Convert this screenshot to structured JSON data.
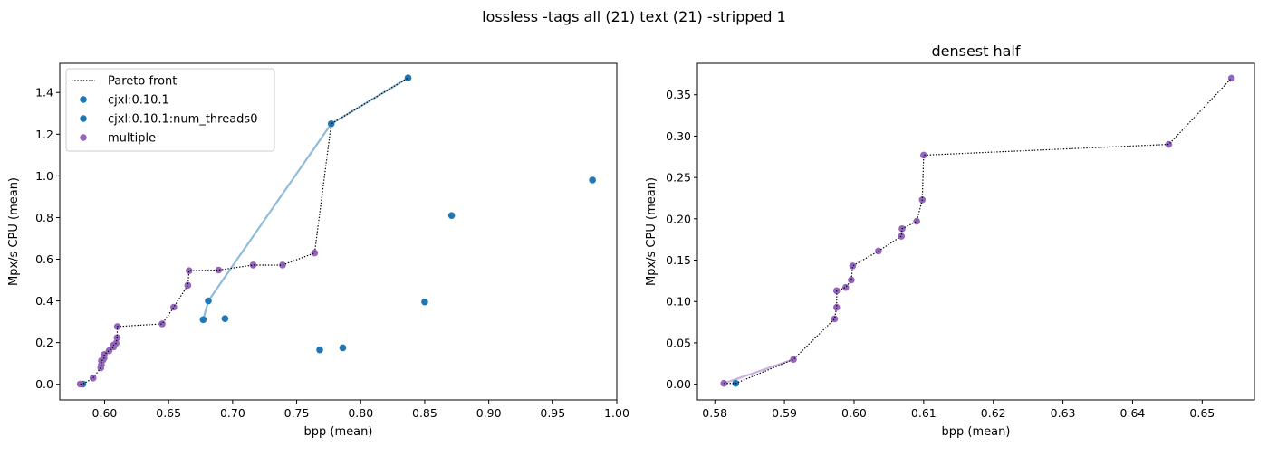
{
  "figure": {
    "suptitle": "lossless -tags all (21) text (21) -stripped 1"
  },
  "colors": {
    "blue": "#1f77b4",
    "light_blue": "#8fbcdb",
    "purple": "#9467bd",
    "light_purple": "#c9b2de",
    "pareto": "#000000"
  },
  "legend": {
    "placement": "top-left",
    "entries": [
      {
        "label": "Pareto front",
        "marker": "dotted-line",
        "color": "#000000"
      },
      {
        "label": "cjxl:0.10.1",
        "marker": "dot",
        "color": "#1f77b4"
      },
      {
        "label": "cjxl:0.10.1:num_threads0",
        "marker": "dot",
        "color": "#1f77b4"
      },
      {
        "label": "multiple",
        "marker": "dot",
        "color": "#9467bd"
      }
    ]
  },
  "chart_data": [
    {
      "type": "scatter",
      "title": "",
      "xlabel": "bpp (mean)",
      "ylabel": "Mpx/s CPU (mean)",
      "xlim": [
        0.565,
        1.0
      ],
      "ylim": [
        -0.075,
        1.54
      ],
      "xticks": [
        0.6,
        0.65,
        0.7,
        0.75,
        0.8,
        0.85,
        0.9,
        0.95,
        1.0
      ],
      "xtick_labels": [
        "0.60",
        "0.65",
        "0.70",
        "0.75",
        "0.80",
        "0.85",
        "0.90",
        "0.95",
        "1.00"
      ],
      "yticks": [
        0.0,
        0.2,
        0.4,
        0.6,
        0.8,
        1.0,
        1.2,
        1.4
      ],
      "ytick_labels": [
        "0.0",
        "0.2",
        "0.4",
        "0.6",
        "0.8",
        "1.0",
        "1.2",
        "1.4"
      ],
      "grid": false,
      "legend": true,
      "series": [
        {
          "name": "cjxl:0.10.1",
          "color": "#1f77b4",
          "points": [
            [
              0.583,
              0.001
            ],
            [
              0.677,
              0.31
            ],
            [
              0.681,
              0.4
            ],
            [
              0.694,
              0.315
            ],
            [
              0.768,
              0.165
            ],
            [
              0.786,
              0.175
            ],
            [
              0.85,
              0.395
            ],
            [
              0.871,
              0.81
            ],
            [
              0.981,
              0.98
            ],
            [
              0.777,
              1.25
            ],
            [
              0.837,
              1.47
            ]
          ]
        },
        {
          "name": "cjxl:0.10.1:num_threads0",
          "color": "#1f77b4",
          "points": []
        },
        {
          "name": "multiple",
          "color": "#9467bd",
          "points": [
            [
              0.581,
              0.001
            ],
            [
              0.591,
              0.03
            ],
            [
              0.597,
              0.079
            ],
            [
              0.5975,
              0.093
            ],
            [
              0.5975,
              0.113
            ],
            [
              0.5988,
              0.117
            ],
            [
              0.5996,
              0.126
            ],
            [
              0.5998,
              0.143
            ],
            [
              0.6035,
              0.161
            ],
            [
              0.607,
              0.179
            ],
            [
              0.607,
              0.188
            ],
            [
              0.609,
              0.197
            ],
            [
              0.6098,
              0.223
            ],
            [
              0.61,
              0.277
            ],
            [
              0.645,
              0.29
            ],
            [
              0.654,
              0.37
            ],
            [
              0.665,
              0.475
            ],
            [
              0.666,
              0.545
            ],
            [
              0.689,
              0.548
            ],
            [
              0.716,
              0.572
            ],
            [
              0.739,
              0.572
            ],
            [
              0.764,
              0.63
            ]
          ]
        }
      ],
      "lines": [
        {
          "name": "cjxl:0.10.1 connecting line",
          "color": "#8fbcdb",
          "points": [
            [
              0.677,
              0.31
            ],
            [
              0.681,
              0.4
            ],
            [
              0.777,
              1.25
            ],
            [
              0.837,
              1.47
            ]
          ]
        },
        {
          "name": "Pareto front",
          "style": "dotted",
          "color": "#000000",
          "points": [
            [
              0.581,
              0.001
            ],
            [
              0.583,
              0.001
            ],
            [
              0.591,
              0.03
            ],
            [
              0.597,
              0.079
            ],
            [
              0.5975,
              0.093
            ],
            [
              0.5975,
              0.113
            ],
            [
              0.5988,
              0.117
            ],
            [
              0.5996,
              0.126
            ],
            [
              0.5998,
              0.143
            ],
            [
              0.6035,
              0.161
            ],
            [
              0.607,
              0.179
            ],
            [
              0.607,
              0.188
            ],
            [
              0.609,
              0.197
            ],
            [
              0.6098,
              0.223
            ],
            [
              0.61,
              0.277
            ],
            [
              0.645,
              0.29
            ],
            [
              0.654,
              0.37
            ],
            [
              0.665,
              0.475
            ],
            [
              0.666,
              0.545
            ],
            [
              0.689,
              0.548
            ],
            [
              0.716,
              0.572
            ],
            [
              0.739,
              0.572
            ],
            [
              0.764,
              0.63
            ],
            [
              0.777,
              1.25
            ],
            [
              0.837,
              1.47
            ]
          ]
        }
      ]
    },
    {
      "type": "scatter",
      "title": "densest half",
      "xlabel": "bpp (mean)",
      "ylabel": "Mpx/s CPU (mean)",
      "xlim": [
        0.5775,
        0.6575
      ],
      "ylim": [
        -0.019,
        0.388
      ],
      "xticks": [
        0.58,
        0.59,
        0.6,
        0.61,
        0.62,
        0.63,
        0.64,
        0.65
      ],
      "xtick_labels": [
        "0.58",
        "0.59",
        "0.60",
        "0.61",
        "0.62",
        "0.63",
        "0.64",
        "0.65"
      ],
      "yticks": [
        0.0,
        0.05,
        0.1,
        0.15,
        0.2,
        0.25,
        0.3,
        0.35
      ],
      "ytick_labels": [
        "0.00",
        "0.05",
        "0.10",
        "0.15",
        "0.20",
        "0.25",
        "0.30",
        "0.35"
      ],
      "grid": false,
      "legend": false,
      "series": [
        {
          "name": "cjxl:0.10.1",
          "color": "#1f77b4",
          "points": [
            [
              0.583,
              0.001
            ]
          ]
        },
        {
          "name": "multiple",
          "color": "#9467bd",
          "points": [
            [
              0.5813,
              0.001
            ],
            [
              0.5913,
              0.03
            ],
            [
              0.5972,
              0.079
            ],
            [
              0.5975,
              0.093
            ],
            [
              0.5975,
              0.113
            ],
            [
              0.5988,
              0.117
            ],
            [
              0.5996,
              0.126
            ],
            [
              0.5998,
              0.143
            ],
            [
              0.6035,
              0.161
            ],
            [
              0.6068,
              0.179
            ],
            [
              0.6069,
              0.188
            ],
            [
              0.609,
              0.197
            ],
            [
              0.6098,
              0.223
            ],
            [
              0.61,
              0.277
            ],
            [
              0.6452,
              0.29
            ],
            [
              0.6542,
              0.37
            ]
          ]
        }
      ],
      "lines": [
        {
          "name": "multiple connecting line",
          "color": "#c9b2de",
          "points": [
            [
              0.5813,
              0.001
            ],
            [
              0.5913,
              0.03
            ]
          ]
        },
        {
          "name": "Pareto front",
          "style": "dotted",
          "color": "#000000",
          "points": [
            [
              0.5813,
              0.001
            ],
            [
              0.583,
              0.001
            ],
            [
              0.5913,
              0.03
            ],
            [
              0.5972,
              0.079
            ],
            [
              0.5975,
              0.093
            ],
            [
              0.5975,
              0.113
            ],
            [
              0.5988,
              0.117
            ],
            [
              0.5996,
              0.126
            ],
            [
              0.5998,
              0.143
            ],
            [
              0.6035,
              0.161
            ],
            [
              0.6068,
              0.179
            ],
            [
              0.6069,
              0.188
            ],
            [
              0.609,
              0.197
            ],
            [
              0.6098,
              0.223
            ],
            [
              0.61,
              0.277
            ],
            [
              0.6452,
              0.29
            ],
            [
              0.6542,
              0.37
            ]
          ]
        }
      ]
    }
  ]
}
